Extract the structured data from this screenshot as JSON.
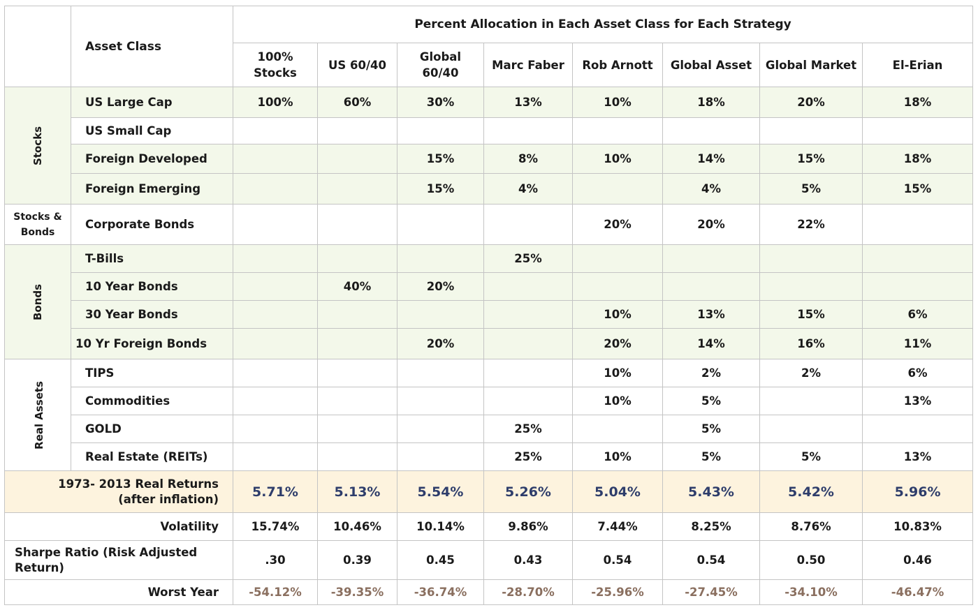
{
  "header": {
    "asset_class": "Asset Class",
    "title": "Percent Allocation in Each Asset Class for Each Strategy",
    "strategies": [
      "100% Stocks",
      "US 60/40",
      "Global 60/40",
      "Marc Faber",
      "Rob Arnott",
      "Global Asset",
      "Global Market",
      "El-Erian"
    ]
  },
  "groups": {
    "stocks": "Stocks",
    "stocks_bonds": "Stocks & Bonds",
    "bonds": "Bonds",
    "real_assets": "Real Assets"
  },
  "chart_data": {
    "type": "table",
    "title": "Percent Allocation in Each Asset Class for Each Strategy",
    "columns": [
      "100% Stocks",
      "US 60/40",
      "Global 60/40",
      "Marc Faber",
      "Rob Arnott",
      "Global Asset",
      "Global Market",
      "El-Erian"
    ],
    "rows": [
      {
        "group": "Stocks",
        "asset": "US Large Cap",
        "values": [
          "100%",
          "60%",
          "30%",
          "13%",
          "10%",
          "18%",
          "20%",
          "18%"
        ]
      },
      {
        "group": "Stocks",
        "asset": "US Small Cap",
        "values": [
          "",
          "",
          "",
          "",
          "",
          "",
          "",
          ""
        ]
      },
      {
        "group": "Stocks",
        "asset": "Foreign Developed",
        "values": [
          "",
          "",
          "15%",
          "8%",
          "10%",
          "14%",
          "15%",
          "18%"
        ]
      },
      {
        "group": "Stocks",
        "asset": "Foreign Emerging",
        "values": [
          "",
          "",
          "15%",
          "4%",
          "",
          "4%",
          "5%",
          "15%"
        ]
      },
      {
        "group": "Stocks & Bonds",
        "asset": "Corporate Bonds",
        "values": [
          "",
          "",
          "",
          "",
          "20%",
          "20%",
          "22%",
          ""
        ]
      },
      {
        "group": "Bonds",
        "asset": "T-Bills",
        "values": [
          "",
          "",
          "",
          "25%",
          "",
          "",
          "",
          ""
        ]
      },
      {
        "group": "Bonds",
        "asset": "10 Year Bonds",
        "values": [
          "",
          "40%",
          "20%",
          "",
          "",
          "",
          "",
          ""
        ]
      },
      {
        "group": "Bonds",
        "asset": "30 Year Bonds",
        "values": [
          "",
          "",
          "",
          "",
          "10%",
          "13%",
          "15%",
          "6%"
        ]
      },
      {
        "group": "Bonds",
        "asset": "10 Yr Foreign Bonds",
        "values": [
          "",
          "",
          "20%",
          "",
          "20%",
          "14%",
          "16%",
          "11%"
        ]
      },
      {
        "group": "Real Assets",
        "asset": "TIPS",
        "values": [
          "",
          "",
          "",
          "",
          "10%",
          "2%",
          "2%",
          "6%"
        ]
      },
      {
        "group": "Real Assets",
        "asset": "Commodities",
        "values": [
          "",
          "",
          "",
          "",
          "10%",
          "5%",
          "",
          "13%"
        ]
      },
      {
        "group": "Real Assets",
        "asset": "GOLD",
        "values": [
          "",
          "",
          "",
          "25%",
          "",
          "5%",
          "",
          ""
        ]
      },
      {
        "group": "Real Assets",
        "asset": "Real Estate (REITs)",
        "values": [
          "",
          "",
          "",
          "25%",
          "10%",
          "5%",
          "5%",
          "13%"
        ]
      }
    ],
    "metrics": [
      {
        "label": "1973- 2013 Real Returns (after inflation)",
        "values": [
          "5.71%",
          "5.13%",
          "5.54%",
          "5.26%",
          "5.04%",
          "5.43%",
          "5.42%",
          "5.96%"
        ]
      },
      {
        "label": "Volatility",
        "values": [
          "15.74%",
          "10.46%",
          "10.14%",
          "9.86%",
          "7.44%",
          "8.25%",
          "8.76%",
          "10.83%"
        ]
      },
      {
        "label": "Sharpe Ratio (Risk Adjusted Return)",
        "values": [
          ".30",
          "0.39",
          "0.45",
          "0.43",
          "0.54",
          "0.54",
          "0.50",
          "0.46"
        ]
      },
      {
        "label": "Worst Year",
        "values": [
          "-54.12%",
          "-39.35%",
          "-36.74%",
          "-28.70%",
          "-25.96%",
          "-27.45%",
          "-34.10%",
          "-46.47%"
        ]
      }
    ],
    "colors": {
      "highlight_rows": "#f3f8ea",
      "returns_row": "#fdf3de",
      "returns_text": "#2e3d6b",
      "worst_text": "#8a6f5f"
    }
  }
}
